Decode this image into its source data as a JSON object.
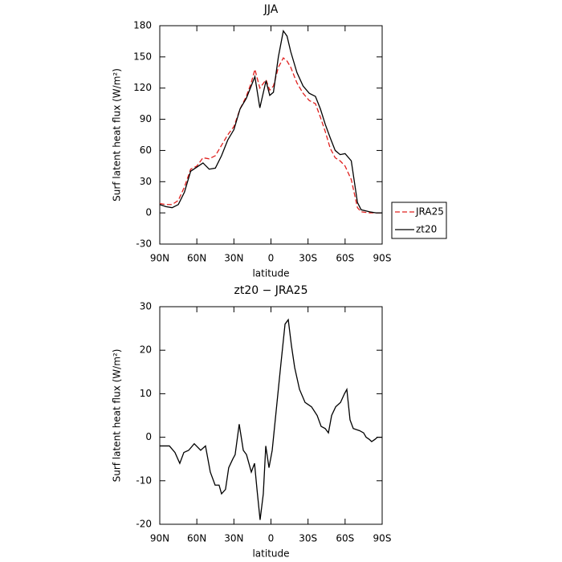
{
  "chart_data": [
    {
      "type": "line",
      "title": "JJA",
      "xlabel": "latitude",
      "ylabel": "Surf latent heat flux (W/m²)",
      "x": [
        90,
        85,
        80,
        75,
        70,
        65,
        60,
        55,
        50,
        45,
        40,
        35,
        30,
        25,
        20,
        16,
        13,
        9,
        4,
        1,
        -2,
        -6,
        -10,
        -13,
        -16,
        -21,
        -26,
        -31,
        -36,
        -40,
        -44,
        -48,
        -52,
        -56,
        -60,
        -65,
        -70,
        -73,
        -80,
        -85,
        -90
      ],
      "series": [
        {
          "name": "JRA25",
          "color": "#e0201e",
          "style": "dashed",
          "values": [
            9,
            8,
            8,
            12,
            25,
            42,
            45,
            53,
            52,
            55,
            65,
            75,
            83,
            100,
            112,
            125,
            138,
            120,
            128,
            118,
            122,
            140,
            149,
            146,
            140,
            125,
            115,
            108,
            105,
            92,
            78,
            62,
            53,
            50,
            45,
            32,
            5,
            1,
            0,
            0,
            0
          ]
        },
        {
          "name": "zt20",
          "color": "#000000",
          "style": "solid",
          "values": [
            8,
            6,
            5,
            8,
            20,
            40,
            44,
            48,
            42,
            43,
            55,
            70,
            80,
            100,
            110,
            122,
            131,
            101,
            127,
            113,
            116,
            150,
            175,
            170,
            155,
            135,
            122,
            115,
            112,
            100,
            85,
            72,
            60,
            56,
            57,
            50,
            10,
            3,
            1,
            0,
            0
          ]
        }
      ],
      "legend": "right",
      "xlim": [
        90,
        -90
      ],
      "xticks": [
        {
          "value": 90,
          "label": "90N"
        },
        {
          "value": 60,
          "label": "60N"
        },
        {
          "value": 30,
          "label": "30N"
        },
        0,
        {
          "value": -30,
          "label": "30S"
        },
        {
          "value": -60,
          "label": "60S"
        },
        {
          "value": -90,
          "label": "90S"
        }
      ],
      "ylim": [
        -30,
        180
      ],
      "yticks": [
        -30,
        0,
        30,
        60,
        90,
        120,
        150,
        180
      ]
    },
    {
      "type": "line",
      "title": "zt20 − JRA25",
      "xlabel": "latitude",
      "ylabel": "Surf latent heat flux (W/m²)",
      "x": [
        90,
        82.2,
        77.7,
        73.8,
        70.5,
        66.6,
        62.1,
        56.9,
        53,
        49.1,
        45.2,
        42,
        40,
        36.8,
        34.2,
        30.9,
        29,
        25.7,
        22.4,
        19.8,
        15.9,
        13.3,
        11.3,
        8.8,
        6.2,
        4.2,
        1.6,
        -1,
        -4.9,
        -8.1,
        -11.4,
        -14,
        -16.6,
        -19.2,
        -23.1,
        -27.6,
        -32.8,
        -37.4,
        -40.6,
        -43.9,
        -46.5,
        -49.1,
        -52.4,
        -56.3,
        -59.5,
        -61.4,
        -64,
        -66.6,
        -71.8,
        -75,
        -77,
        -79.6,
        -81.5,
        -84.1,
        -86.1,
        -90
      ],
      "values": [
        -2,
        -2,
        -3.5,
        -6,
        -3.5,
        -3,
        -1.5,
        -3,
        -2,
        -8,
        -11,
        -11,
        -13,
        -12,
        -7,
        -5,
        -4,
        3,
        -3,
        -4,
        -8,
        -6,
        -12,
        -19,
        -13,
        -2,
        -7,
        -3,
        8,
        17,
        26,
        27,
        21,
        16,
        11,
        8,
        7,
        5,
        2.5,
        2,
        1,
        5,
        7,
        8,
        10,
        11,
        4,
        2,
        1.5,
        1,
        0,
        -0.5,
        -1,
        -0.5,
        0,
        0
      ],
      "color": "#000000",
      "xlim": [
        90,
        -90
      ],
      "xticks": [
        {
          "value": 90,
          "label": "90N"
        },
        {
          "value": 60,
          "label": "60N"
        },
        {
          "value": 30,
          "label": "30N"
        },
        0,
        {
          "value": -30,
          "label": "30S"
        },
        {
          "value": -60,
          "label": "60S"
        },
        {
          "value": -90,
          "label": "90S"
        }
      ],
      "ylim": [
        -20,
        30
      ],
      "yticks": [
        -20,
        -10,
        0,
        10,
        20,
        30
      ]
    }
  ]
}
